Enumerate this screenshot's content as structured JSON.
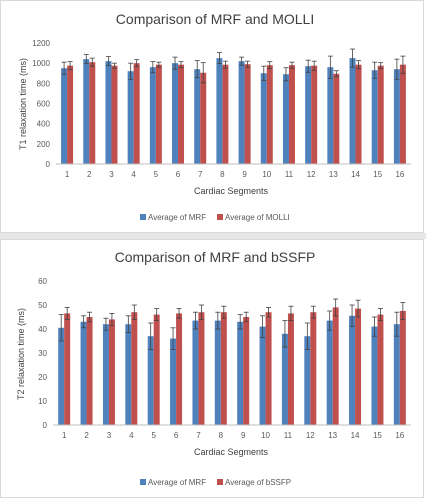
{
  "colors": {
    "mrf": "#4f81bd",
    "reference": "#c0504d",
    "error_bar": "#404040",
    "axis": "#bfbfbf"
  },
  "chart_data": [
    {
      "type": "bar",
      "title": "Comparison  of MRF and MOLLI",
      "xlabel": "Cardiac Segments",
      "ylabel": "T1 relaxation time (ms)",
      "ylim": [
        0,
        1200
      ],
      "yticks": [
        0,
        200,
        400,
        600,
        800,
        1000,
        1200
      ],
      "categories": [
        "1",
        "2",
        "3",
        "4",
        "5",
        "6",
        "7",
        "8",
        "9",
        "10",
        "11",
        "12",
        "13",
        "14",
        "15",
        "16"
      ],
      "grid": false,
      "legend_position": "bottom",
      "series": [
        {
          "name": "Average  of MRF",
          "values": [
            950,
            1040,
            1020,
            920,
            960,
            1000,
            940,
            1050,
            1020,
            900,
            890,
            970,
            960,
            1050,
            930,
            940
          ],
          "errors": [
            60,
            45,
            45,
            80,
            55,
            60,
            85,
            55,
            40,
            70,
            65,
            60,
            110,
            90,
            80,
            100
          ]
        },
        {
          "name": "Average  of MOLLI",
          "values": [
            975,
            1010,
            975,
            1000,
            985,
            985,
            905,
            985,
            990,
            980,
            980,
            975,
            895,
            985,
            975,
            985
          ],
          "errors": [
            40,
            40,
            25,
            35,
            25,
            30,
            100,
            35,
            30,
            35,
            30,
            45,
            30,
            40,
            30,
            85
          ]
        }
      ]
    },
    {
      "type": "bar",
      "title": "Comparison  of MRF and bSSFP",
      "xlabel": "Cardiac Segments",
      "ylabel": "T2 relaxation time (ms)",
      "ylim": [
        0,
        60
      ],
      "yticks": [
        0,
        10,
        20,
        30,
        40,
        50,
        60
      ],
      "categories": [
        "1",
        "2",
        "3",
        "4",
        "5",
        "6",
        "7",
        "8",
        "9",
        "10",
        "11",
        "12",
        "13",
        "14",
        "15",
        "16"
      ],
      "grid": false,
      "legend_position": "bottom",
      "series": [
        {
          "name": "Average  of MRF",
          "values": [
            40.5,
            43,
            42,
            42,
            37,
            36,
            43.5,
            43.5,
            43,
            41,
            38,
            37,
            43.5,
            45.5,
            41,
            42
          ],
          "errors": [
            5.5,
            2.5,
            2.5,
            3.5,
            5.5,
            4.5,
            3.5,
            3.5,
            3,
            4.5,
            5.5,
            5.5,
            4,
            4.5,
            4,
            5
          ]
        },
        {
          "name": "Average  of bSSFP",
          "values": [
            46.5,
            45,
            44,
            47,
            46,
            46.5,
            47,
            47,
            45,
            47,
            46.5,
            47,
            49,
            48.5,
            46,
            47.5
          ],
          "errors": [
            2.5,
            2,
            2.5,
            3,
            2.5,
            2,
            3,
            2.5,
            2,
            2,
            3,
            2.5,
            3.5,
            3.5,
            2.5,
            3.5
          ]
        }
      ]
    }
  ]
}
